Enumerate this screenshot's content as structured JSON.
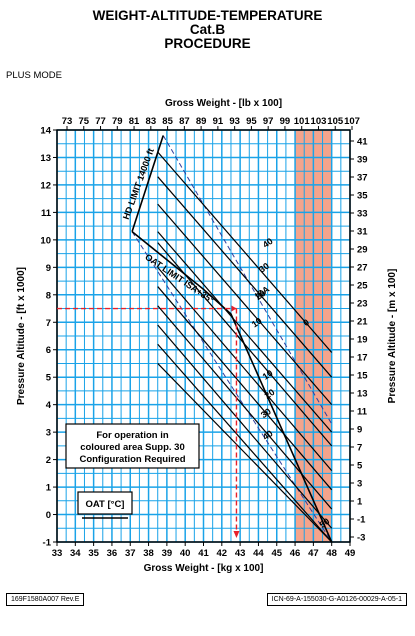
{
  "header": {
    "title": "WEIGHT-ALTITUDE-TEMPERATURE",
    "subtitle": "Cat.B",
    "subtitle2": "PROCEDURE",
    "mode": "PLUS MODE"
  },
  "footer": {
    "left_code": "169F1580A007 Rev.E",
    "right_code": "ICN-69-A-155030-G-A0126-00029-A-05-1"
  },
  "chart_data": {
    "type": "line",
    "title": "WEIGHT-ALTITUDE-TEMPERATURE",
    "x_bottom": {
      "label": "Gross Weight - [kg x 100]",
      "range": [
        33,
        49
      ],
      "ticks": [
        "33",
        "34",
        "35",
        "36",
        "37",
        "38",
        "39",
        "40",
        "41",
        "42",
        "43",
        "44",
        "45",
        "46",
        "47",
        "48",
        "49"
      ]
    },
    "x_top": {
      "label": "Gross Weight - [lb x 100]",
      "ticks": [
        "73",
        "75",
        "77",
        "79",
        "81",
        "83",
        "85",
        "87",
        "89",
        "91",
        "93",
        "95",
        "97",
        "99",
        "101",
        "103",
        "105",
        "107"
      ]
    },
    "y_left": {
      "label": "Pressure Altitude - [ft x 1000]",
      "range": [
        -1,
        14
      ],
      "ticks": [
        "-1",
        "0",
        "1",
        "2",
        "3",
        "4",
        "5",
        "6",
        "7",
        "8",
        "9",
        "10",
        "11",
        "12",
        "13",
        "14"
      ]
    },
    "y_right": {
      "label": "Pressure Altitude - [m x 100]",
      "ticks": [
        "-3",
        "-1",
        "1",
        "3",
        "5",
        "7",
        "9",
        "11",
        "13",
        "15",
        "17",
        "19",
        "21",
        "23",
        "25",
        "27",
        "29",
        "31",
        "33",
        "35",
        "37",
        "39",
        "41"
      ]
    },
    "shaded_region": {
      "x_range": [
        46,
        48
      ],
      "color": "#f4a48c"
    },
    "series": [
      {
        "name": "40",
        "points": [
          [
            38.5,
            13.2
          ],
          [
            48,
            5.9
          ]
        ]
      },
      {
        "name": "30",
        "points": [
          [
            38.5,
            12.3
          ],
          [
            48,
            5.0
          ]
        ]
      },
      {
        "name": "20",
        "points": [
          [
            38.5,
            11.3
          ],
          [
            48,
            4.0
          ]
        ]
      },
      {
        "name": "10",
        "points": [
          [
            38.5,
            10.3
          ],
          [
            48,
            3.0
          ]
        ]
      },
      {
        "name": "ISA",
        "points": [
          [
            38.5,
            9.9
          ],
          [
            48,
            2.5
          ]
        ]
      },
      {
        "name": "0",
        "points": [
          [
            38.5,
            9.0
          ],
          [
            48,
            1.6
          ]
        ]
      },
      {
        "name": "-10",
        "points": [
          [
            38.5,
            8.3
          ],
          [
            48,
            0.9
          ]
        ]
      },
      {
        "name": "-20",
        "points": [
          [
            38.5,
            7.6
          ],
          [
            48,
            0.2
          ]
        ]
      },
      {
        "name": "-30",
        "points": [
          [
            38.5,
            6.9
          ],
          [
            48,
            -0.5
          ]
        ]
      },
      {
        "name": "-40",
        "points": [
          [
            38.5,
            6.2
          ],
          [
            48,
            -1.0
          ]
        ]
      },
      {
        "name": "-50",
        "points": [
          [
            38.5,
            5.5
          ],
          [
            48,
            -1.0
          ]
        ]
      }
    ],
    "limits": {
      "hd_limit": {
        "label": "HD LIMIT 14000 ft",
        "points": [
          [
            37.1,
            10.3
          ],
          [
            38.8,
            13.8
          ]
        ]
      },
      "oat_limit": {
        "label": "OAT LIMIT ISA+35°",
        "points": [
          [
            37.1,
            10.3
          ],
          [
            41,
            8.2
          ],
          [
            42.5,
            7.3
          ],
          [
            48,
            -1.0
          ]
        ]
      }
    },
    "annotations": {
      "isa_label": "ISA",
      "minus50_label": "50",
      "note_lines": [
        "For operation in",
        "coloured area Supp. 30",
        "Configuration Required"
      ],
      "oat_box": "OAT [°C]"
    },
    "example": {
      "altitude_ft_x1000": 7.5,
      "weight_kg_x100": 42.8,
      "color": "#e8212a",
      "dashed_guide_color": "#2f3e9e"
    },
    "grid": true,
    "grid_color": "#1aa3e8"
  }
}
